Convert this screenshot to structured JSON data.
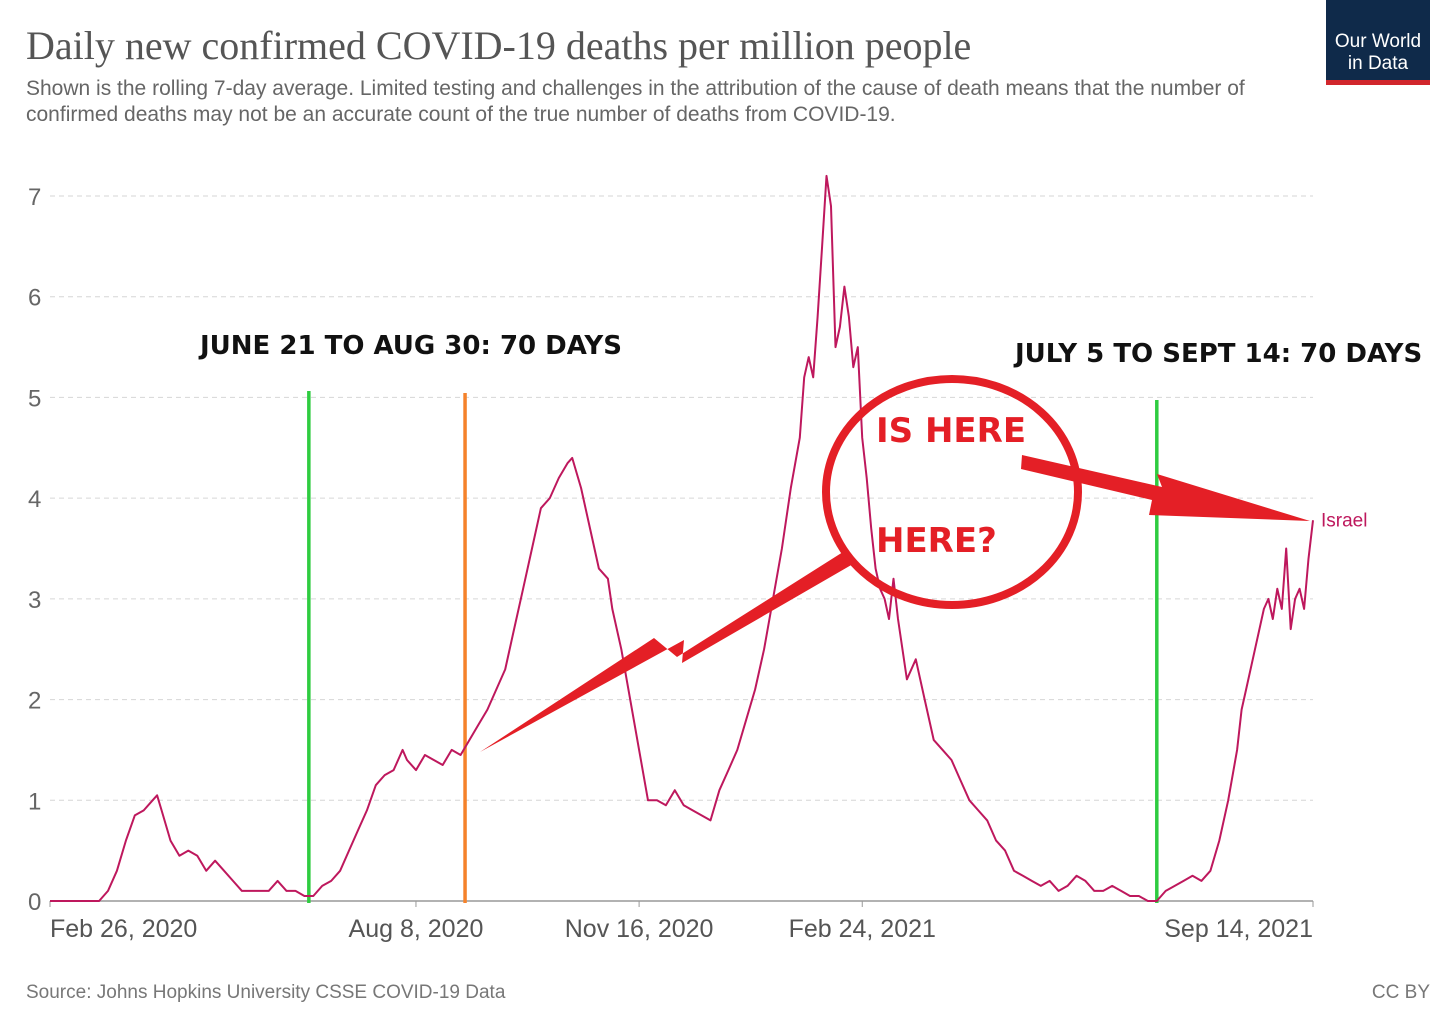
{
  "header": {
    "title": "Daily new confirmed COVID-19 deaths per million people",
    "subtitle": "Shown is the rolling 7-day average. Limited testing and challenges in the attribution of the cause of death means that the number of confirmed deaths may not be an accurate count of the true number of deaths from COVID-19.",
    "logo_line1": "Our World",
    "logo_line2": "in Data"
  },
  "footer": {
    "source": "Source: Johns Hopkins University CSSE COVID-19 Data",
    "license": "CC BY"
  },
  "colors": {
    "series": "#be185d",
    "green_marker": "#2ecc40",
    "orange_marker": "#f5822a",
    "red_annotation": "#e41f26"
  },
  "annotations": {
    "left_label": "JUNE 21 TO AUG 30: 70 DAYS",
    "right_label": "JULY 5 TO SEPT 14: 70 DAYS",
    "circle_text_1": "IS HERE",
    "circle_text_2": "HERE?"
  },
  "chart_data": {
    "type": "line",
    "title": "Daily new confirmed COVID-19 deaths per million people",
    "xlabel": "",
    "ylabel": "",
    "ylim": [
      0,
      7
    ],
    "yticks": [
      0,
      1,
      2,
      3,
      4,
      5,
      6,
      7
    ],
    "x_start": "2020-02-26",
    "x_end": "2021-09-14",
    "total_days": 566,
    "xtick_labels": [
      {
        "day": 0,
        "label": "Feb 26, 2020"
      },
      {
        "day": 164,
        "label": "Aug 8, 2020"
      },
      {
        "day": 264,
        "label": "Nov 16, 2020"
      },
      {
        "day": 364,
        "label": "Feb 24, 2021"
      },
      {
        "day": 566,
        "label": "Sep 14, 2021"
      }
    ],
    "vertical_markers": [
      {
        "name": "June 21, 2020",
        "day": 116,
        "color": "green"
      },
      {
        "name": "Aug 30, 2020",
        "day": 186,
        "color": "orange"
      },
      {
        "name": "July 5, 2021",
        "day": 496,
        "color": "green"
      }
    ],
    "series": [
      {
        "name": "Israel",
        "points": [
          [
            0,
            0
          ],
          [
            22,
            0
          ],
          [
            26,
            0.1
          ],
          [
            30,
            0.3
          ],
          [
            34,
            0.6
          ],
          [
            38,
            0.85
          ],
          [
            42,
            0.9
          ],
          [
            46,
            1.0
          ],
          [
            48,
            1.05
          ],
          [
            50,
            0.9
          ],
          [
            54,
            0.6
          ],
          [
            58,
            0.45
          ],
          [
            62,
            0.5
          ],
          [
            66,
            0.45
          ],
          [
            70,
            0.3
          ],
          [
            74,
            0.4
          ],
          [
            78,
            0.3
          ],
          [
            82,
            0.2
          ],
          [
            86,
            0.1
          ],
          [
            90,
            0.1
          ],
          [
            94,
            0.1
          ],
          [
            98,
            0.1
          ],
          [
            102,
            0.2
          ],
          [
            106,
            0.1
          ],
          [
            110,
            0.1
          ],
          [
            114,
            0.05
          ],
          [
            118,
            0.05
          ],
          [
            122,
            0.15
          ],
          [
            126,
            0.2
          ],
          [
            130,
            0.3
          ],
          [
            134,
            0.5
          ],
          [
            138,
            0.7
          ],
          [
            142,
            0.9
          ],
          [
            146,
            1.15
          ],
          [
            150,
            1.25
          ],
          [
            154,
            1.3
          ],
          [
            158,
            1.5
          ],
          [
            160,
            1.4
          ],
          [
            164,
            1.3
          ],
          [
            168,
            1.45
          ],
          [
            172,
            1.4
          ],
          [
            176,
            1.35
          ],
          [
            180,
            1.5
          ],
          [
            184,
            1.45
          ],
          [
            188,
            1.6
          ],
          [
            192,
            1.75
          ],
          [
            196,
            1.9
          ],
          [
            200,
            2.1
          ],
          [
            204,
            2.3
          ],
          [
            208,
            2.7
          ],
          [
            212,
            3.1
          ],
          [
            216,
            3.5
          ],
          [
            220,
            3.9
          ],
          [
            224,
            4.0
          ],
          [
            228,
            4.2
          ],
          [
            232,
            4.35
          ],
          [
            234,
            4.4
          ],
          [
            238,
            4.1
          ],
          [
            242,
            3.7
          ],
          [
            246,
            3.3
          ],
          [
            250,
            3.2
          ],
          [
            252,
            2.9
          ],
          [
            256,
            2.5
          ],
          [
            260,
            2.0
          ],
          [
            264,
            1.5
          ],
          [
            268,
            1.0
          ],
          [
            272,
            1.0
          ],
          [
            276,
            0.95
          ],
          [
            280,
            1.1
          ],
          [
            284,
            0.95
          ],
          [
            288,
            0.9
          ],
          [
            292,
            0.85
          ],
          [
            296,
            0.8
          ],
          [
            300,
            1.1
          ],
          [
            304,
            1.3
          ],
          [
            308,
            1.5
          ],
          [
            312,
            1.8
          ],
          [
            316,
            2.1
          ],
          [
            320,
            2.5
          ],
          [
            324,
            3.0
          ],
          [
            328,
            3.5
          ],
          [
            332,
            4.1
          ],
          [
            336,
            4.6
          ],
          [
            338,
            5.2
          ],
          [
            340,
            5.4
          ],
          [
            342,
            5.2
          ],
          [
            344,
            5.8
          ],
          [
            346,
            6.5
          ],
          [
            348,
            7.2
          ],
          [
            350,
            6.9
          ],
          [
            352,
            5.5
          ],
          [
            354,
            5.7
          ],
          [
            356,
            6.1
          ],
          [
            358,
            5.8
          ],
          [
            360,
            5.3
          ],
          [
            362,
            5.5
          ],
          [
            364,
            4.6
          ],
          [
            366,
            4.2
          ],
          [
            368,
            3.7
          ],
          [
            370,
            3.3
          ],
          [
            372,
            3.1
          ],
          [
            374,
            3.0
          ],
          [
            376,
            2.8
          ],
          [
            378,
            3.2
          ],
          [
            380,
            2.8
          ],
          [
            384,
            2.2
          ],
          [
            388,
            2.4
          ],
          [
            392,
            2.0
          ],
          [
            396,
            1.6
          ],
          [
            400,
            1.5
          ],
          [
            404,
            1.4
          ],
          [
            408,
            1.2
          ],
          [
            412,
            1.0
          ],
          [
            416,
            0.9
          ],
          [
            420,
            0.8
          ],
          [
            424,
            0.6
          ],
          [
            428,
            0.5
          ],
          [
            432,
            0.3
          ],
          [
            436,
            0.25
          ],
          [
            440,
            0.2
          ],
          [
            444,
            0.15
          ],
          [
            448,
            0.2
          ],
          [
            452,
            0.1
          ],
          [
            456,
            0.15
          ],
          [
            460,
            0.25
          ],
          [
            464,
            0.2
          ],
          [
            468,
            0.1
          ],
          [
            472,
            0.1
          ],
          [
            476,
            0.15
          ],
          [
            480,
            0.1
          ],
          [
            484,
            0.05
          ],
          [
            488,
            0.05
          ],
          [
            492,
            0.0
          ],
          [
            496,
            0.0
          ],
          [
            500,
            0.1
          ],
          [
            504,
            0.15
          ],
          [
            508,
            0.2
          ],
          [
            512,
            0.25
          ],
          [
            516,
            0.2
          ],
          [
            520,
            0.3
          ],
          [
            524,
            0.6
          ],
          [
            528,
            1.0
          ],
          [
            532,
            1.5
          ],
          [
            534,
            1.9
          ],
          [
            536,
            2.1
          ],
          [
            540,
            2.5
          ],
          [
            544,
            2.9
          ],
          [
            546,
            3.0
          ],
          [
            548,
            2.8
          ],
          [
            550,
            3.1
          ],
          [
            552,
            2.9
          ],
          [
            554,
            3.5
          ],
          [
            556,
            2.7
          ],
          [
            558,
            3.0
          ],
          [
            560,
            3.1
          ],
          [
            562,
            2.9
          ],
          [
            564,
            3.4
          ],
          [
            566,
            3.78
          ]
        ]
      }
    ],
    "series_label": "Israel"
  }
}
